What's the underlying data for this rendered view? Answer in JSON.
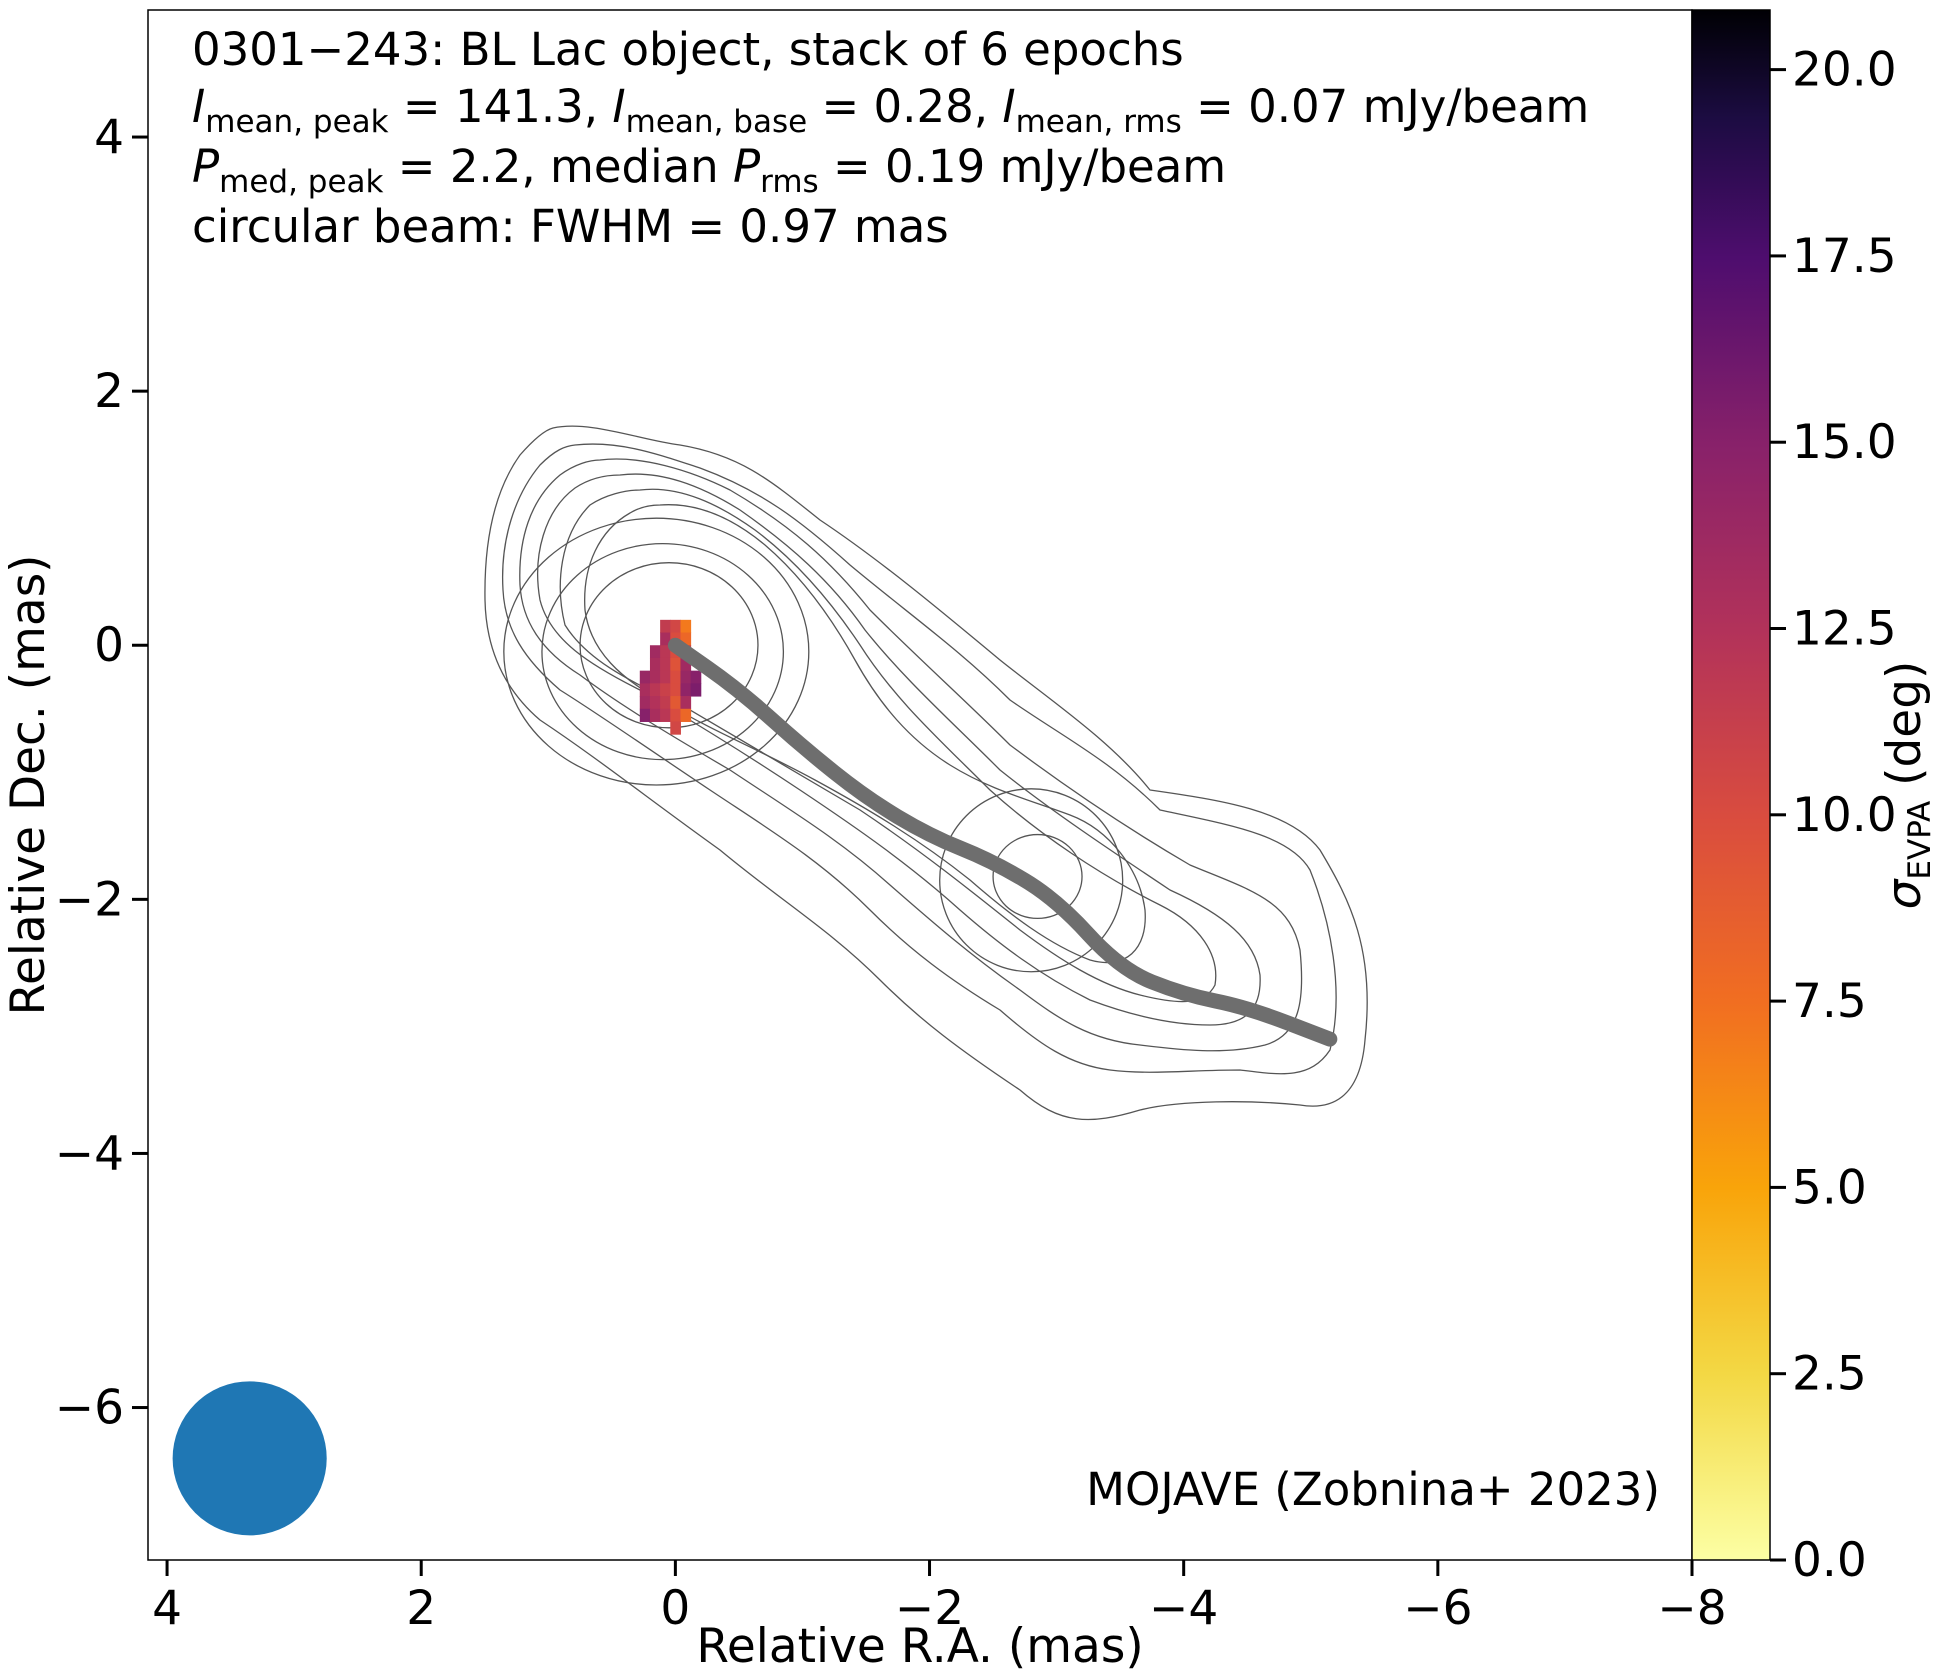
{
  "chart_data": {
    "type": "heatmap",
    "title_lines": [
      "0301−243: BL Lac object, stack of 6 epochs",
      "circular beam: FWHM = 0.97 mas"
    ],
    "stats_line_1": {
      "I_mean_peak": "141.3",
      "I_mean_base": "0.28",
      "I_mean_rms": "0.07",
      "unit": "mJy/beam"
    },
    "stats_line_2": {
      "P_med_peak": "2.2",
      "median_P_rms": "0.19",
      "unit": "mJy/beam"
    },
    "xlabel": "Relative R.A. (mas)",
    "ylabel": "Relative Dec. (mas)",
    "colorbar_label": "(deg)",
    "credit": "MOJAVE (Zobnina+ 2023)",
    "xlim": [
      4.15,
      -8.0
    ],
    "ylim": [
      -7.2,
      5.0
    ],
    "colorbar_range": [
      0,
      20.8
    ],
    "colormap": "inferno_r",
    "x_ticks": [
      4,
      2,
      0,
      -2,
      -4,
      -6,
      -8
    ],
    "x_tick_labels": [
      "4",
      "2",
      "0",
      "−2",
      "−4",
      "−6",
      "−8"
    ],
    "y_ticks": [
      4,
      2,
      0,
      -2,
      -4,
      -6
    ],
    "y_tick_labels": [
      "4",
      "2",
      "0",
      "−2",
      "−4",
      "−6"
    ],
    "colorbar_ticks": [
      0,
      2.5,
      5,
      7.5,
      10,
      12.5,
      15,
      17.5,
      20
    ],
    "colorbar_tick_labels": [
      "0.0",
      "2.5",
      "5.0",
      "7.5",
      "10.0",
      "12.5",
      "15.0",
      "17.5",
      "20.0"
    ],
    "ridgeline": [
      [
        0,
        0
      ],
      [
        -0.5,
        -0.35
      ],
      [
        -1.0,
        -0.8
      ],
      [
        -1.5,
        -1.2
      ],
      [
        -2.0,
        -1.5
      ],
      [
        -2.5,
        -1.7
      ],
      [
        -3.0,
        -2.0
      ],
      [
        -3.5,
        -2.55
      ],
      [
        -4.0,
        -2.75
      ],
      [
        -4.5,
        -2.85
      ],
      [
        -5.15,
        -3.1
      ]
    ],
    "beam": {
      "x": 3.35,
      "y": -6.4,
      "fwhm": 0.97,
      "color": "#1f77b4"
    },
    "evpa_pixels": [
      {
        "x": 0.08,
        "y": 0.15,
        "v": 11.5
      },
      {
        "x": 0.0,
        "y": 0.15,
        "v": 10.5
      },
      {
        "x": -0.08,
        "y": 0.15,
        "v": 7.0
      },
      {
        "x": 0.08,
        "y": 0.05,
        "v": 13.0
      },
      {
        "x": 0.0,
        "y": 0.05,
        "v": 10.0
      },
      {
        "x": -0.08,
        "y": 0.05,
        "v": 8.0
      },
      {
        "x": 0.16,
        "y": -0.05,
        "v": 13.5
      },
      {
        "x": 0.08,
        "y": -0.05,
        "v": 12.0
      },
      {
        "x": 0.0,
        "y": -0.05,
        "v": 10.0
      },
      {
        "x": -0.08,
        "y": -0.05,
        "v": 11.0
      },
      {
        "x": 0.16,
        "y": -0.15,
        "v": 13.0
      },
      {
        "x": 0.08,
        "y": -0.15,
        "v": 12.0
      },
      {
        "x": 0.0,
        "y": -0.15,
        "v": 9.5
      },
      {
        "x": -0.08,
        "y": -0.15,
        "v": 13.5
      },
      {
        "x": 0.24,
        "y": -0.25,
        "v": 14.0
      },
      {
        "x": 0.16,
        "y": -0.25,
        "v": 13.0
      },
      {
        "x": 0.08,
        "y": -0.25,
        "v": 12.0
      },
      {
        "x": 0.0,
        "y": -0.25,
        "v": 10.0
      },
      {
        "x": -0.08,
        "y": -0.25,
        "v": 14.0
      },
      {
        "x": -0.16,
        "y": -0.25,
        "v": 15.0
      },
      {
        "x": 0.24,
        "y": -0.35,
        "v": 13.0
      },
      {
        "x": 0.16,
        "y": -0.35,
        "v": 12.0
      },
      {
        "x": 0.08,
        "y": -0.35,
        "v": 11.0
      },
      {
        "x": 0.0,
        "y": -0.35,
        "v": 10.0
      },
      {
        "x": -0.08,
        "y": -0.35,
        "v": 14.5
      },
      {
        "x": -0.16,
        "y": -0.35,
        "v": 15.5
      },
      {
        "x": 0.24,
        "y": -0.45,
        "v": 13.5
      },
      {
        "x": 0.16,
        "y": -0.45,
        "v": 12.5
      },
      {
        "x": 0.08,
        "y": -0.45,
        "v": 11.5
      },
      {
        "x": 0.0,
        "y": -0.45,
        "v": 9.0
      },
      {
        "x": -0.08,
        "y": -0.45,
        "v": 13.0
      },
      {
        "x": 0.24,
        "y": -0.55,
        "v": 15.0
      },
      {
        "x": 0.16,
        "y": -0.55,
        "v": 13.0
      },
      {
        "x": 0.08,
        "y": -0.55,
        "v": 12.0
      },
      {
        "x": 0.0,
        "y": -0.55,
        "v": 10.0
      },
      {
        "x": -0.08,
        "y": -0.55,
        "v": 8.0
      },
      {
        "x": 0.0,
        "y": -0.65,
        "v": 10.5
      }
    ],
    "contours": [
      {
        "cx": 0.05,
        "cy": 0.0,
        "rx": 0.7,
        "ry": 0.65
      },
      {
        "cx": 0.1,
        "cy": -0.05,
        "rx": 0.95,
        "ry": 0.85
      },
      {
        "cx": 0.15,
        "cy": -0.05,
        "rx": 1.2,
        "ry": 1.05
      },
      {
        "cx": -2.85,
        "cy": -1.82,
        "rx": 0.35,
        "ry": 0.33
      },
      {
        "cx": -2.8,
        "cy": -1.85,
        "rx": 0.72,
        "ry": 0.72
      }
    ]
  }
}
